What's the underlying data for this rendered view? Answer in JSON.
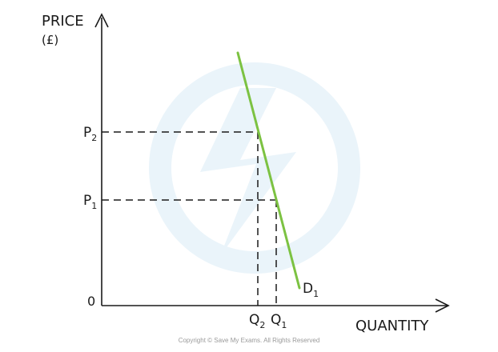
{
  "chart_data": {
    "type": "line",
    "ylabel": "PRICE",
    "ylabel_unit": "(£)",
    "xlabel": "QUANTITY",
    "origin_label": "0",
    "series": [
      {
        "name": "D",
        "name_subscript": "1",
        "color": "#7cc242",
        "points": [
          {
            "x": 297,
            "y": 316
          },
          {
            "x": 374,
            "y": 22
          }
        ]
      }
    ],
    "price_markers": [
      {
        "label": "P",
        "subscript": "2",
        "price": 217,
        "quantity_label": "Q",
        "quantity_subscript": "2",
        "quantity": 322
      },
      {
        "label": "P",
        "subscript": "1",
        "price": 132,
        "quantity_label": "Q",
        "quantity_subscript": "1",
        "quantity": 345
      }
    ],
    "xlim": [
      127,
      560
    ],
    "ylim": [
      0,
      382
    ],
    "grid": false,
    "watermark_color": "#eaf4fa"
  },
  "footer": {
    "copyright": "Copyright © Save My Exams. All Rights Reserved"
  }
}
